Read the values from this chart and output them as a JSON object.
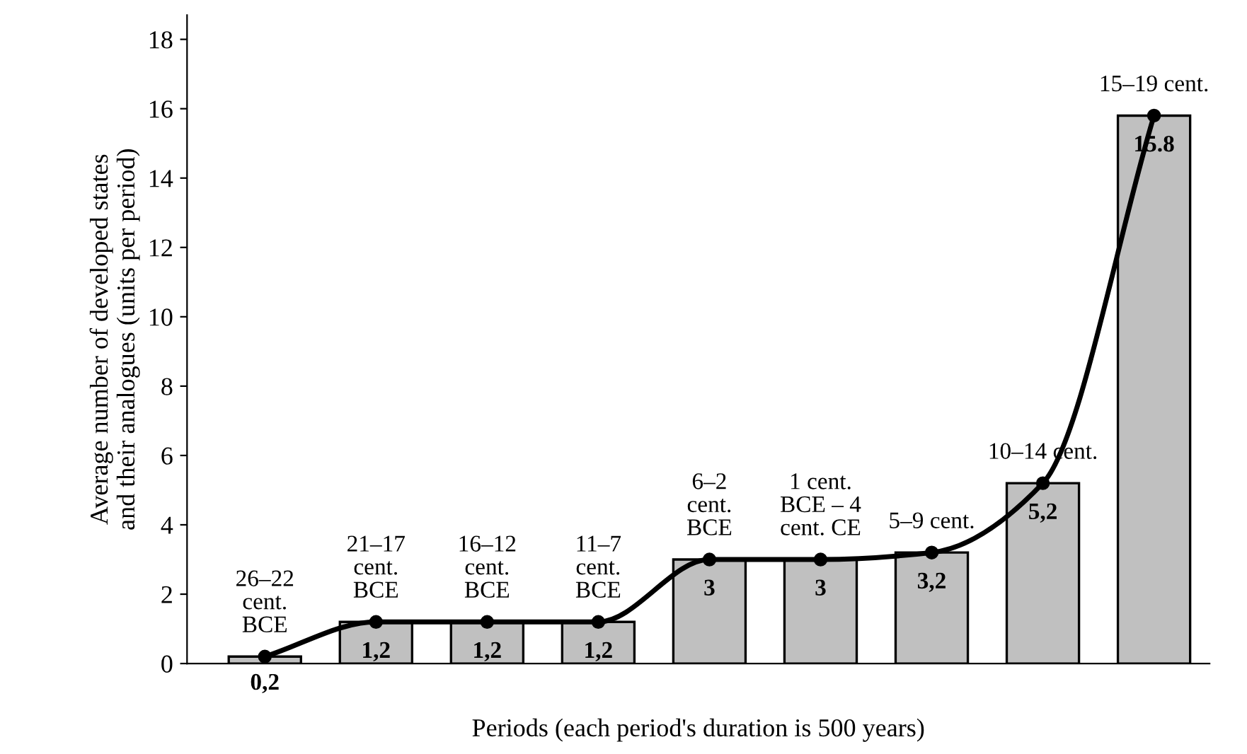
{
  "chart_data": {
    "type": "bar",
    "xlabel": "Periods (each period's duration is 500 years)",
    "ylabel": "Average number of developed states\nand their analogues (units per period)",
    "categories": [
      "26–22\ncent.\nBCE",
      "21–17\ncent.\nBCE",
      "16–12\ncent.\nBCE",
      "11–7\ncent.\nBCE",
      "6–2\ncent.\nBCE",
      "1 cent.\nBCE – 4\ncent. CE",
      "5–9 cent.",
      "10–14 cent.",
      "15–19 cent."
    ],
    "series": [
      {
        "color": "#c0c0c0",
        "values": [
          0.2,
          1.2,
          1.2,
          1.2,
          3,
          3,
          3.2,
          5.2,
          15.8
        ],
        "value_labels": [
          "0,2",
          "1,2",
          "1,2",
          "1,2",
          "3",
          "3",
          "3,2",
          "5,2",
          "15.8"
        ]
      },
      {
        "type": "line",
        "color": "#000000",
        "values": [
          0.2,
          1.2,
          1.2,
          1.2,
          3,
          3,
          3.2,
          5.2,
          15.8
        ],
        "marker": "circle"
      }
    ],
    "ylim": [
      0,
      18.7
    ],
    "yticks": [
      0,
      2,
      4,
      6,
      8,
      10,
      12,
      14,
      16,
      18
    ],
    "grid": false,
    "legend": false,
    "tick_labels": "y"
  }
}
